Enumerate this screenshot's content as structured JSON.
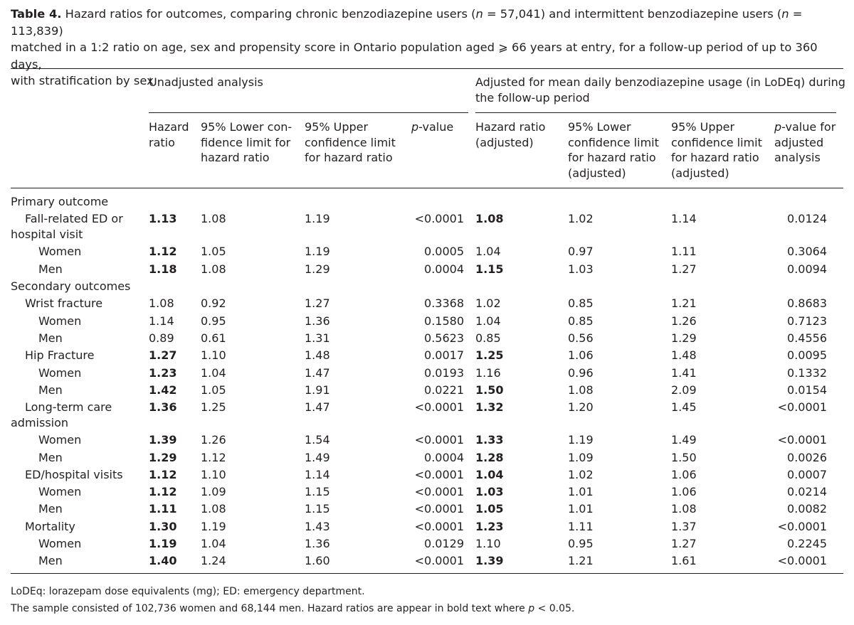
{
  "caption": {
    "label": "Table 4.",
    "text_1": "Hazard ratios for outcomes, comparing chronic benzodiazepine users (",
    "n1_var": "n",
    "n1_val": " = 57,041) and intermittent benzodiazepine users (",
    "n2_var": "n",
    "n2_val": " = 113,839)",
    "line_2": "matched in a 1:2 ratio on age, sex and propensity score in Ontario population aged ⩾ 66 years at entry, for a follow-up period of up to 360 days,",
    "line_3": "with stratification by sex."
  },
  "groups": {
    "unadjusted": "Unadjusted analysis",
    "adjusted_1": "Adjusted for mean daily benzodiazepine usage (in LoDEq) during",
    "adjusted_2": "the follow-up period"
  },
  "columns": [
    {
      "lines": [
        "Hazard",
        "ratio"
      ]
    },
    {
      "lines": [
        "95% Lower con-",
        "fidence limit for",
        "hazard ratio"
      ]
    },
    {
      "lines": [
        "95% Upper",
        "confidence limit",
        "for hazard ratio"
      ]
    },
    {
      "lines": [
        "p-value"
      ]
    },
    {
      "lines": [
        "Hazard ratio",
        "(adjusted)"
      ]
    },
    {
      "lines": [
        "95% Lower",
        "confidence limit",
        "for hazard ratio",
        "(adjusted)"
      ]
    },
    {
      "lines": [
        "95% Upper",
        "confidence limit",
        "for hazard ratio",
        "(adjusted)"
      ]
    },
    {
      "lines": [
        "p-value for",
        "adjusted",
        "analysis"
      ]
    }
  ],
  "rows": [
    {
      "label": "Primary outcome",
      "indent": 0
    },
    {
      "label": "Fall-related ED or hospital visit",
      "label_lines": [
        "Fall-related ED or",
        "hospital visit"
      ],
      "indent": 1,
      "hr": "1.13",
      "hr_b": true,
      "lo": "1.08",
      "hi": "1.19",
      "p": "<0.0001",
      "ahr": "1.08",
      "ahr_b": true,
      "alo": "1.02",
      "ahi": "1.14",
      "ap": "0.0124"
    },
    {
      "label": "Women",
      "indent": 2,
      "hr": "1.12",
      "hr_b": true,
      "lo": "1.05",
      "hi": "1.19",
      "p": "0.0005",
      "ahr": "1.04",
      "ahr_b": false,
      "alo": "0.97",
      "ahi": "1.11",
      "ap": "0.3064"
    },
    {
      "label": "Men",
      "indent": 2,
      "hr": "1.18",
      "hr_b": true,
      "lo": "1.08",
      "hi": "1.29",
      "p": "0.0004",
      "ahr": "1.15",
      "ahr_b": true,
      "alo": "1.03",
      "ahi": "1.27",
      "ap": "0.0094"
    },
    {
      "label": "Secondary outcomes",
      "indent": 0
    },
    {
      "label": "Wrist fracture",
      "indent": 1,
      "hr": "1.08",
      "hr_b": false,
      "lo": "0.92",
      "hi": "1.27",
      "p": "0.3368",
      "ahr": "1.02",
      "ahr_b": false,
      "alo": "0.85",
      "ahi": "1.21",
      "ap": "0.8683"
    },
    {
      "label": "Women",
      "indent": 2,
      "hr": "1.14",
      "hr_b": false,
      "lo": "0.95",
      "hi": "1.36",
      "p": "0.1580",
      "ahr": "1.04",
      "ahr_b": false,
      "alo": "0.85",
      "ahi": "1.26",
      "ap": "0.7123"
    },
    {
      "label": "Men",
      "indent": 2,
      "hr": "0.89",
      "hr_b": false,
      "lo": "0.61",
      "hi": "1.31",
      "p": "0.5623",
      "ahr": "0.85",
      "ahr_b": false,
      "alo": "0.56",
      "ahi": "1.29",
      "ap": "0.4556"
    },
    {
      "label": "Hip Fracture",
      "indent": 1,
      "hr": "1.27",
      "hr_b": true,
      "lo": "1.10",
      "hi": "1.48",
      "p": "0.0017",
      "ahr": "1.25",
      "ahr_b": true,
      "alo": "1.06",
      "ahi": "1.48",
      "ap": "0.0095"
    },
    {
      "label": "Women",
      "indent": 2,
      "hr": "1.23",
      "hr_b": true,
      "lo": "1.04",
      "hi": "1.47",
      "p": "0.0193",
      "ahr": "1.16",
      "ahr_b": false,
      "alo": "0.96",
      "ahi": "1.41",
      "ap": "0.1332"
    },
    {
      "label": "Men",
      "indent": 2,
      "hr": "1.42",
      "hr_b": true,
      "lo": "1.05",
      "hi": "1.91",
      "p": "0.0221",
      "ahr": "1.50",
      "ahr_b": true,
      "alo": "1.08",
      "ahi": "2.09",
      "ap": "0.0154"
    },
    {
      "label": "Long-term care admission",
      "label_lines": [
        "Long-term care",
        "admission"
      ],
      "indent": 1,
      "hr": "1.36",
      "hr_b": true,
      "lo": "1.25",
      "hi": "1.47",
      "p": "<0.0001",
      "ahr": "1.32",
      "ahr_b": true,
      "alo": "1.20",
      "ahi": "1.45",
      "ap": "<0.0001"
    },
    {
      "label": "Women",
      "indent": 2,
      "hr": "1.39",
      "hr_b": true,
      "lo": "1.26",
      "hi": "1.54",
      "p": "<0.0001",
      "ahr": "1.33",
      "ahr_b": true,
      "alo": "1.19",
      "ahi": "1.49",
      "ap": "<0.0001"
    },
    {
      "label": "Men",
      "indent": 2,
      "hr": "1.29",
      "hr_b": true,
      "lo": "1.12",
      "hi": "1.49",
      "p": "0.0004",
      "ahr": "1.28",
      "ahr_b": true,
      "alo": "1.09",
      "ahi": "1.50",
      "ap": "0.0026"
    },
    {
      "label": "ED/hospital visits",
      "indent": 1,
      "hr": "1.12",
      "hr_b": true,
      "lo": "1.10",
      "hi": "1.14",
      "p": "<0.0001",
      "ahr": "1.04",
      "ahr_b": true,
      "alo": "1.02",
      "ahi": "1.06",
      "ap": "0.0007"
    },
    {
      "label": "Women",
      "indent": 2,
      "hr": "1.12",
      "hr_b": true,
      "lo": "1.09",
      "hi": "1.15",
      "p": "<0.0001",
      "ahr": "1.03",
      "ahr_b": true,
      "alo": "1.01",
      "ahi": "1.06",
      "ap": "0.0214"
    },
    {
      "label": "Men",
      "indent": 2,
      "hr": "1.11",
      "hr_b": true,
      "lo": "1.08",
      "hi": "1.15",
      "p": "<0.0001",
      "ahr": "1.05",
      "ahr_b": true,
      "alo": "1.01",
      "ahi": "1.08",
      "ap": "0.0082"
    },
    {
      "label": "Mortality",
      "indent": 1,
      "hr": "1.30",
      "hr_b": true,
      "lo": "1.19",
      "hi": "1.43",
      "p": "<0.0001",
      "ahr": "1.23",
      "ahr_b": true,
      "alo": "1.11",
      "ahi": "1.37",
      "ap": "<0.0001"
    },
    {
      "label": "Women",
      "indent": 2,
      "hr": "1.19",
      "hr_b": true,
      "lo": "1.04",
      "hi": "1.36",
      "p": "0.0129",
      "ahr": "1.10",
      "ahr_b": false,
      "alo": "0.95",
      "ahi": "1.27",
      "ap": "0.2245"
    },
    {
      "label": "Men",
      "indent": 2,
      "hr": "1.40",
      "hr_b": true,
      "lo": "1.24",
      "hi": "1.60",
      "p": "<0.0001",
      "ahr": "1.39",
      "ahr_b": true,
      "alo": "1.21",
      "ahi": "1.61",
      "ap": "<0.0001"
    }
  ],
  "footnotes": {
    "line_1": "LoDEq: lorazepam dose equivalents (mg); ED: emergency department.",
    "line_2_pre": "The sample consisted of 102,736 women and 68,144 men. Hazard ratios are appear in bold text where ",
    "line_2_var": "p",
    "line_2_post": " < 0.05."
  }
}
